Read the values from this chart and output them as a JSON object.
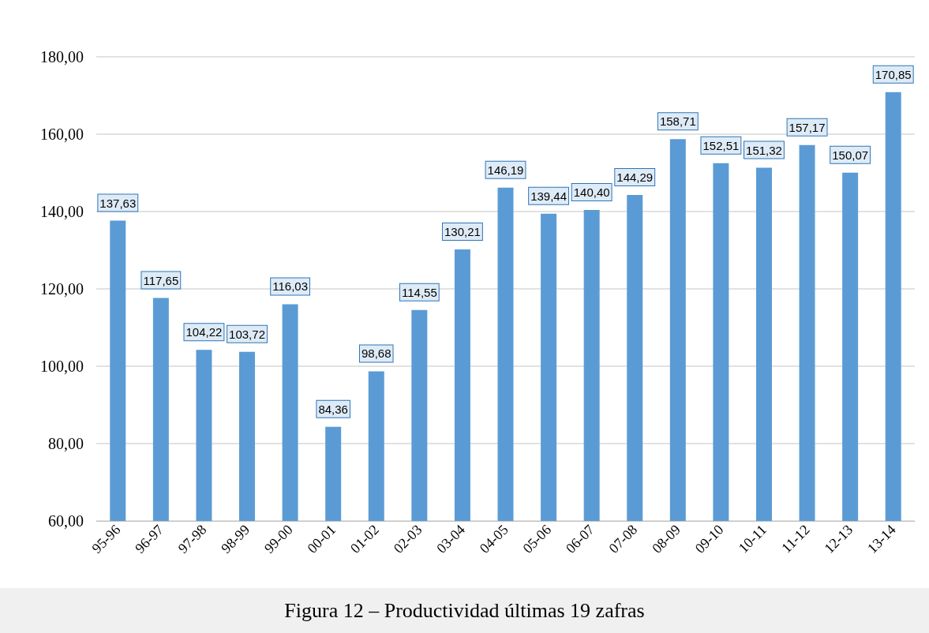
{
  "chart_data": {
    "type": "bar",
    "categories": [
      "95-96",
      "96-97",
      "97-98",
      "98-99",
      "99-00",
      "00-01",
      "01-02",
      "02-03",
      "03-04",
      "04-05",
      "05-06",
      "06-07",
      "07-08",
      "08-09",
      "09-10",
      "10-11",
      "11-12",
      "12-13",
      "13-14"
    ],
    "values": [
      137.63,
      117.65,
      104.22,
      103.72,
      116.03,
      84.36,
      98.68,
      114.55,
      130.21,
      146.19,
      139.44,
      140.4,
      144.29,
      158.71,
      152.51,
      151.32,
      157.17,
      150.07,
      170.85
    ],
    "value_labels": [
      "137,63",
      "117,65",
      "104,22",
      "103,72",
      "116,03",
      "84,36",
      "98,68",
      "114,55",
      "130,21",
      "146,19",
      "139,44",
      "140,40",
      "144,29",
      "158,71",
      "152,51",
      "151,32",
      "157,17",
      "150,07",
      "170,85"
    ],
    "color": "#5b9bd5",
    "ylim": [
      60,
      180
    ],
    "yticks": [
      {
        "value": 60,
        "label": "60,00"
      },
      {
        "value": 80,
        "label": "80,00"
      },
      {
        "value": 100,
        "label": "100,00"
      },
      {
        "value": 120,
        "label": "120,00"
      },
      {
        "value": 140,
        "label": "140,00"
      },
      {
        "value": 160,
        "label": "160,00"
      },
      {
        "value": 180,
        "label": "180,00"
      }
    ],
    "grid": "y",
    "annotations": [
      "Figura 12 – Productividad últimas 19 zafras"
    ]
  }
}
